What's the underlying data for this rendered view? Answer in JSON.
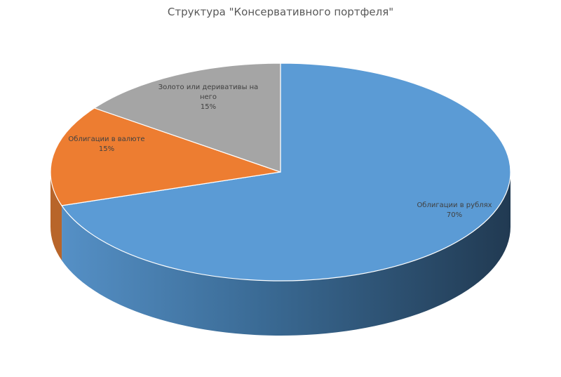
{
  "chart_data": {
    "type": "pie",
    "title": "Структура \"Консервативного портфеля\"",
    "categories": [
      "Облигации в рублях",
      "Облигации в валюте",
      "Золото или деривативы на него"
    ],
    "values": [
      70,
      15,
      15
    ],
    "percent_labels": [
      "70%",
      "15%",
      "15%"
    ],
    "label_lines": [
      [
        "Облигации в рублях",
        "70%"
      ],
      [
        "Облигации в валюте",
        "15%"
      ],
      [
        "Золото или деривативы на",
        "него",
        "15%"
      ]
    ],
    "colors": [
      "#5B9BD5",
      "#ED7D31",
      "#A5A5A5"
    ],
    "legend": "none",
    "style": "3d"
  }
}
